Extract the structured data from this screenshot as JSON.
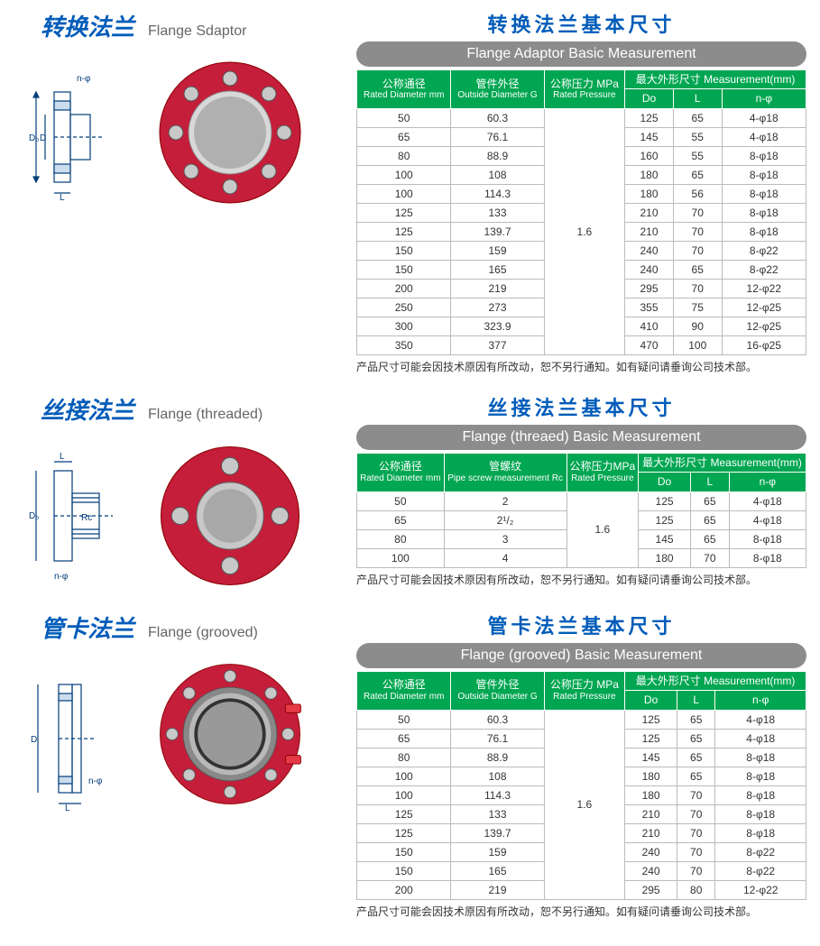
{
  "sections": [
    {
      "title_cn": "转换法兰",
      "title_en": "Flange Sdaptor",
      "table_title_cn": "转换法兰基本尺寸",
      "table_title_en": "Flange Adaptor Basic Measurement",
      "headers": [
        {
          "cn": "公称通径",
          "en": "Rated Diameter mm"
        },
        {
          "cn": "管件外径",
          "en": "Outside Diameter G"
        },
        {
          "cn": "公称压力 MPa",
          "en": "Rated Pressure"
        },
        {
          "cn": "最大外形尺寸 Measurement(mm)",
          "span": 3
        }
      ],
      "subheaders": [
        "Do",
        "L",
        "n-φ"
      ],
      "pressure": "1.6",
      "rows": [
        [
          "50",
          "60.3",
          "125",
          "65",
          "4-φ18"
        ],
        [
          "65",
          "76.1",
          "145",
          "55",
          "4-φ18"
        ],
        [
          "80",
          "88.9",
          "160",
          "55",
          "8-φ18"
        ],
        [
          "100",
          "108",
          "180",
          "65",
          "8-φ18"
        ],
        [
          "100",
          "114.3",
          "180",
          "56",
          "8-φ18"
        ],
        [
          "125",
          "133",
          "210",
          "70",
          "8-φ18"
        ],
        [
          "125",
          "139.7",
          "210",
          "70",
          "8-φ18"
        ],
        [
          "150",
          "159",
          "240",
          "70",
          "8-φ22"
        ],
        [
          "150",
          "165",
          "240",
          "65",
          "8-φ22"
        ],
        [
          "200",
          "219",
          "295",
          "70",
          "12-φ22"
        ],
        [
          "250",
          "273",
          "355",
          "75",
          "12-φ25"
        ],
        [
          "300",
          "323.9",
          "410",
          "90",
          "12-φ25"
        ],
        [
          "350",
          "377",
          "470",
          "100",
          "16-φ25"
        ]
      ],
      "note": "产品尺寸可能会因技术原因有所改动，恕不另行通知。如有疑问请垂询公司技术部。",
      "diagram_labels": {
        "d1": "D₀",
        "d2": "D",
        "l": "L",
        "n": "n-φ"
      }
    },
    {
      "title_cn": "丝接法兰",
      "title_en": "Flange (threaded)",
      "table_title_cn": "丝接法兰基本尺寸",
      "table_title_en": "Flange (threaed) Basic Measurement",
      "headers": [
        {
          "cn": "公称通径",
          "en": "Rated Diameter mm"
        },
        {
          "cn": "管螺纹",
          "en": "Pipe screw measurement Rc"
        },
        {
          "cn": "公称压力MPa",
          "en": "Rated Pressure"
        },
        {
          "cn": "最大外形尺寸 Measurement(mm)",
          "span": 3
        }
      ],
      "subheaders": [
        "Do",
        "L",
        "n-φ"
      ],
      "pressure": "1.6",
      "rows": [
        [
          "50",
          "2",
          "125",
          "65",
          "4-φ18"
        ],
        [
          "65",
          "2¹/₂",
          "125",
          "65",
          "4-φ18"
        ],
        [
          "80",
          "3",
          "145",
          "65",
          "8-φ18"
        ],
        [
          "100",
          "4",
          "180",
          "70",
          "8-φ18"
        ]
      ],
      "note": "产品尺寸可能会因技术原因有所改动，恕不另行通知。如有疑问请垂询公司技术部。",
      "diagram_labels": {
        "d1": "D₀",
        "rc": "Rc",
        "l": "L",
        "n": "n-φ"
      }
    },
    {
      "title_cn": "管卡法兰",
      "title_en": "Flange (grooved)",
      "table_title_cn": "管卡法兰基本尺寸",
      "table_title_en": "Flange (grooved) Basic Measurement",
      "headers": [
        {
          "cn": "公称通径",
          "en": "Rated Diameter mm"
        },
        {
          "cn": "管件外径",
          "en": "Outside Diameter G"
        },
        {
          "cn": "公称压力 MPa",
          "en": "Rated Pressure"
        },
        {
          "cn": "最大外形尺寸 Measurement(mm)",
          "span": 3
        }
      ],
      "subheaders": [
        "Do",
        "L",
        "n-φ"
      ],
      "pressure": "1.6",
      "rows": [
        [
          "50",
          "60.3",
          "125",
          "65",
          "4-φ18"
        ],
        [
          "65",
          "76.1",
          "125",
          "65",
          "4-φ18"
        ],
        [
          "80",
          "88.9",
          "145",
          "65",
          "8-φ18"
        ],
        [
          "100",
          "108",
          "180",
          "65",
          "8-φ18"
        ],
        [
          "100",
          "114.3",
          "180",
          "70",
          "8-φ18"
        ],
        [
          "125",
          "133",
          "210",
          "70",
          "8-φ18"
        ],
        [
          "125",
          "139.7",
          "210",
          "70",
          "8-φ18"
        ],
        [
          "150",
          "159",
          "240",
          "70",
          "8-φ22"
        ],
        [
          "150",
          "165",
          "240",
          "70",
          "8-φ22"
        ],
        [
          "200",
          "219",
          "295",
          "80",
          "12-φ22"
        ]
      ],
      "note": "产品尺寸可能会因技术原因有所改动，恕不另行通知。如有疑问请垂询公司技术部。",
      "diagram_labels": {
        "d1": "D",
        "l": "L",
        "n": "n-φ"
      }
    }
  ],
  "colors": {
    "brand_blue": "#005cb9",
    "table_green": "#00a651",
    "subtitle_gray": "#8c8c8c",
    "flange_red": "#c41e3a"
  }
}
